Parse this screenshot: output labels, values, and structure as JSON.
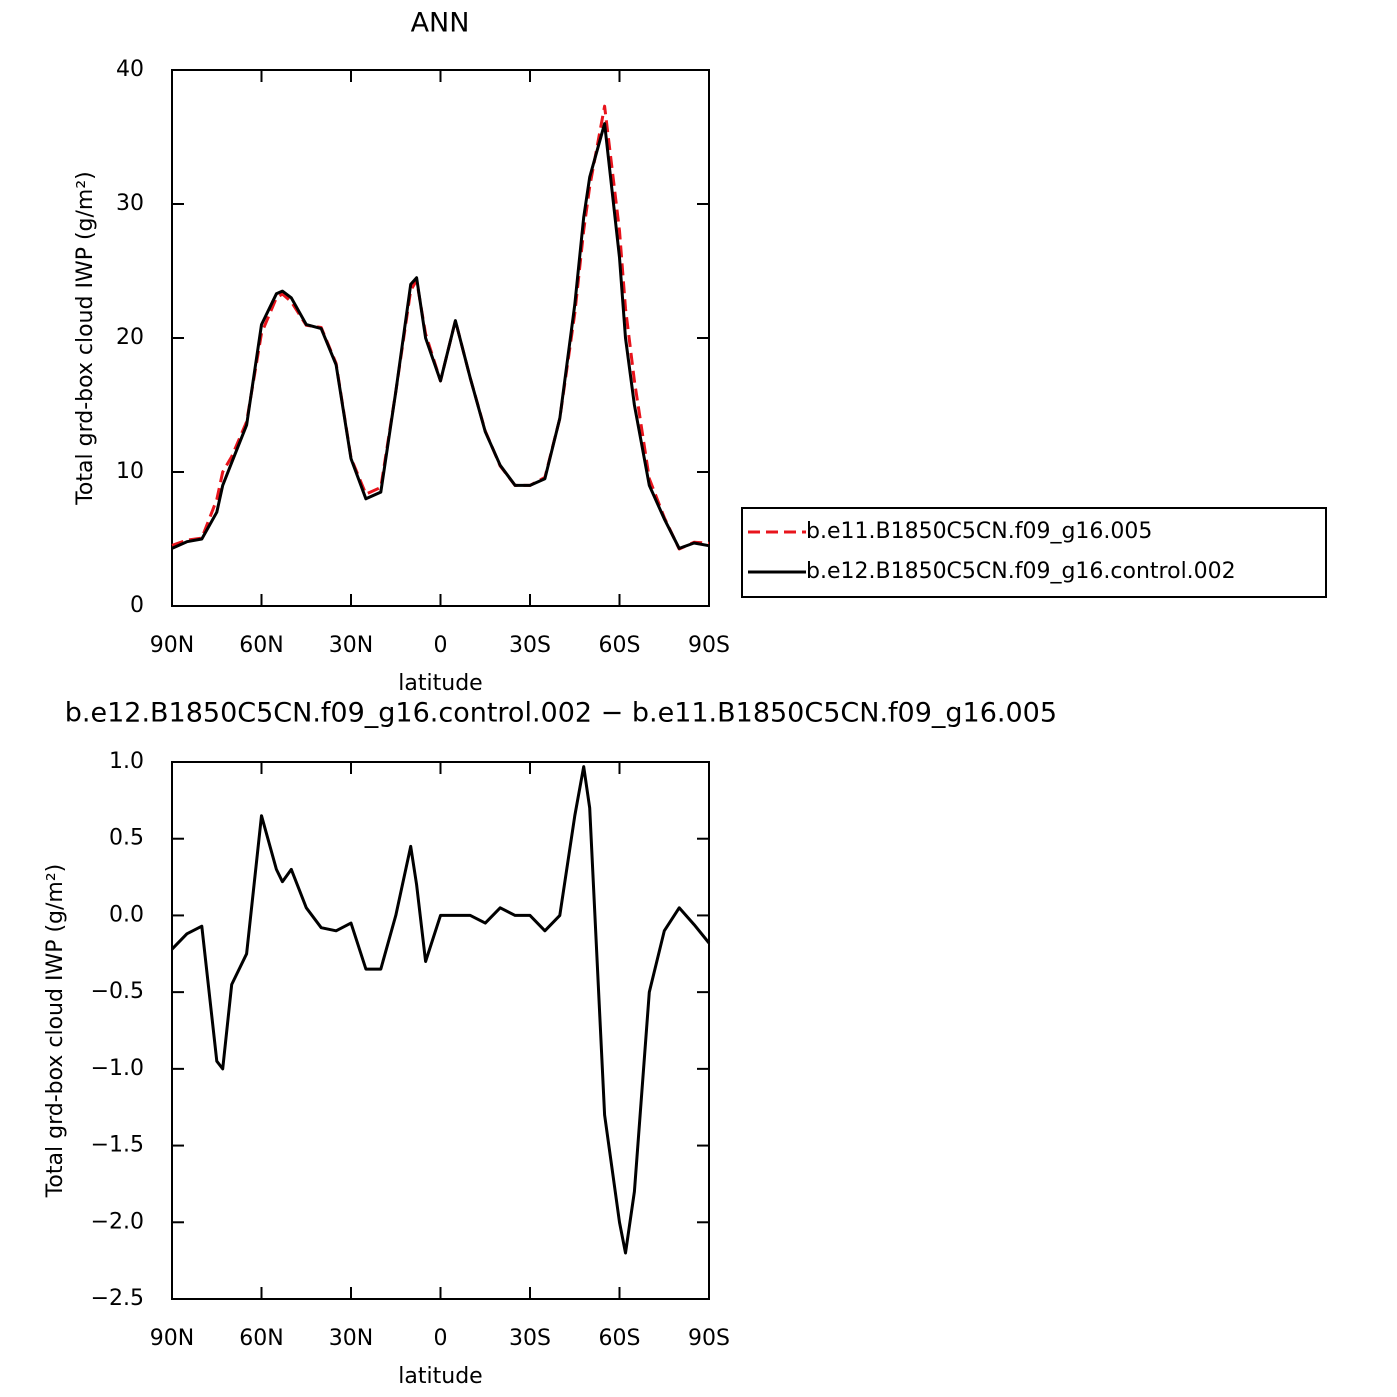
{
  "chart_data": [
    {
      "type": "line",
      "title": "ANN",
      "xlabel": "latitude",
      "ylabel": "Total grd-box cloud IWP (g/m²)",
      "x": [
        90,
        85,
        80,
        75,
        73,
        70,
        65,
        60,
        55,
        53,
        50,
        45,
        40,
        35,
        30,
        25,
        20,
        15,
        10,
        8,
        5,
        0,
        -5,
        -10,
        -15,
        -20,
        -25,
        -30,
        -35,
        -40,
        -45,
        -48,
        -50,
        -55,
        -60,
        -62,
        -65,
        -70,
        -75,
        -80,
        -85,
        -90
      ],
      "xlim": [
        90,
        -90
      ],
      "xticks": [
        {
          "value": 90,
          "label": "90N"
        },
        {
          "value": 60,
          "label": "60N"
        },
        {
          "value": 30,
          "label": "30N"
        },
        0,
        {
          "value": -30,
          "label": "30S"
        },
        {
          "value": -60,
          "label": "60S"
        },
        {
          "value": -90,
          "label": "90S"
        }
      ],
      "ylim": [
        0,
        40
      ],
      "yticks": [
        0,
        10,
        20,
        30,
        40
      ],
      "legend": "right",
      "series": [
        {
          "name": "b.e11.B1850C5CN.f09_g16.005",
          "color": "#e8141c",
          "linestyle": "dashed",
          "values": [
            4.52,
            4.92,
            5.07,
            7.95,
            10.0,
            11.15,
            13.75,
            20.35,
            23.0,
            23.28,
            22.7,
            20.95,
            20.78,
            18.1,
            11.05,
            8.35,
            8.85,
            16.0,
            23.55,
            24.3,
            20.3,
            16.8,
            21.3,
            17.0,
            13.05,
            10.45,
            9.0,
            9.0,
            9.6,
            14.0,
            21.85,
            28.03,
            31.3,
            37.3,
            28.0,
            22.2,
            16.8,
            9.5,
            6.6,
            4.25,
            4.76,
            4.68
          ]
        },
        {
          "name": "b.e12.B1850C5CN.f09_g16.control.002",
          "color": "#000000",
          "linestyle": "solid",
          "values": [
            4.3,
            4.8,
            5.0,
            7.0,
            9.0,
            10.7,
            13.5,
            21.0,
            23.3,
            23.5,
            23.0,
            21.0,
            20.7,
            18.0,
            11.0,
            8.0,
            8.5,
            16.0,
            24.0,
            24.5,
            20.0,
            16.8,
            21.3,
            17.0,
            13.0,
            10.5,
            9.0,
            9.0,
            9.5,
            14.0,
            22.5,
            29.0,
            32.0,
            36.0,
            26.0,
            20.0,
            15.0,
            9.0,
            6.5,
            4.3,
            4.7,
            4.5
          ]
        }
      ]
    },
    {
      "type": "line",
      "title": "b.e12.B1850C5CN.f09_g16.control.002 − b.e11.B1850C5CN.f09_g16.005",
      "xlabel": "latitude",
      "ylabel": "Total grd-box cloud IWP (g/m²)",
      "x": [
        90,
        85,
        80,
        75,
        73,
        70,
        65,
        60,
        55,
        53,
        50,
        45,
        40,
        35,
        30,
        25,
        20,
        15,
        10,
        8,
        5,
        0,
        -5,
        -10,
        -15,
        -20,
        -25,
        -30,
        -35,
        -40,
        -45,
        -48,
        -50,
        -55,
        -60,
        -62,
        -65,
        -70,
        -75,
        -80,
        -85,
        -90
      ],
      "xlim": [
        90,
        -90
      ],
      "xticks": [
        {
          "value": 90,
          "label": "90N"
        },
        {
          "value": 60,
          "label": "60N"
        },
        {
          "value": 30,
          "label": "30N"
        },
        0,
        {
          "value": -30,
          "label": "30S"
        },
        {
          "value": -60,
          "label": "60S"
        },
        {
          "value": -90,
          "label": "90S"
        }
      ],
      "ylim": [
        -2.5,
        1
      ],
      "yticks": [
        {
          "value": 1,
          "label": "1.0"
        },
        0.5,
        {
          "value": 0,
          "label": "0.0"
        },
        {
          "value": -0.5,
          "label": "−0.5"
        },
        {
          "value": -1,
          "label": "−1.0"
        },
        {
          "value": -1.5,
          "label": "−1.5"
        },
        {
          "value": -2,
          "label": "−2.0"
        },
        {
          "value": -2.5,
          "label": "−2.5"
        }
      ],
      "series": [
        {
          "color": "#000000",
          "linestyle": "solid",
          "values": [
            -0.22,
            -0.12,
            -0.07,
            -0.95,
            -1.0,
            -0.45,
            -0.25,
            0.65,
            0.3,
            0.22,
            0.3,
            0.05,
            -0.08,
            -0.1,
            -0.05,
            -0.35,
            -0.35,
            0.0,
            0.45,
            0.2,
            -0.3,
            0.0,
            0.0,
            0.0,
            -0.05,
            0.05,
            0.0,
            0.0,
            -0.1,
            0.0,
            0.65,
            0.97,
            0.7,
            -1.3,
            -2.0,
            -2.2,
            -1.8,
            -0.5,
            -0.1,
            0.05,
            -0.06,
            -0.18
          ]
        }
      ]
    }
  ]
}
